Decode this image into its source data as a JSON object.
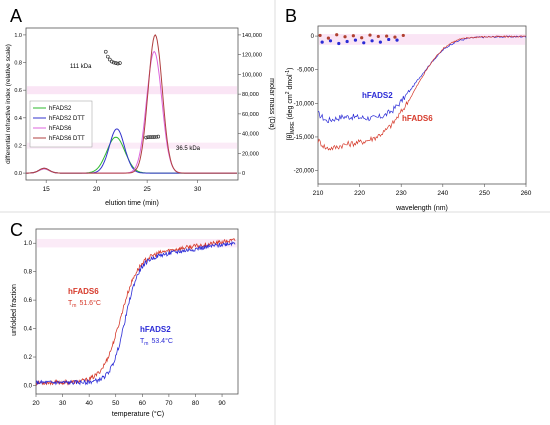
{
  "panels": {
    "A": "A",
    "B": "B",
    "C": "C"
  },
  "chart_data": [
    {
      "id": "A",
      "type": "line",
      "xlabel": "elution time (min)",
      "ylabel": "differential refractive index (relative scale)",
      "y2label": "molar mass (Da)",
      "xlim": [
        13,
        34
      ],
      "ylim": [
        -0.05,
        1.05
      ],
      "y2lim": [
        -7000,
        147000
      ],
      "xticks": [
        15,
        20,
        25,
        30
      ],
      "yticks": [
        0,
        0.2,
        0.4,
        0.6,
        0.8,
        1.0
      ],
      "ytick_labels": [
        "0.0",
        "0.2",
        "0.4",
        "0.6",
        "0.8",
        "1.0"
      ],
      "y2ticks": [
        0,
        20000,
        40000,
        60000,
        80000,
        100000,
        120000,
        140000
      ],
      "y2tick_labels": [
        "0",
        "20,000",
        "40,000",
        "60,000",
        "80,000",
        "100,000",
        "120,000",
        "140,000"
      ],
      "legend_position": "left",
      "series": [
        {
          "name": "hFADS2",
          "color": "#2eb82e",
          "peaks": [
            {
              "t": 14.8,
              "h": 0.03,
              "w": 0.5
            },
            {
              "t": 21.9,
              "h": 0.26,
              "w": 0.9
            }
          ]
        },
        {
          "name": "hFADS2 DTT",
          "color": "#3333cc",
          "peaks": [
            {
              "t": 14.8,
              "h": 0.035,
              "w": 0.5
            },
            {
              "t": 22.0,
              "h": 0.32,
              "w": 0.75
            }
          ]
        },
        {
          "name": "hFADS6",
          "color": "#dd66dd",
          "peaks": [
            {
              "t": 14.8,
              "h": 0.03,
              "w": 0.5
            },
            {
              "t": 25.7,
              "h": 0.88,
              "w": 0.75
            }
          ]
        },
        {
          "name": "hFADS6 DTT",
          "color": "#b04040",
          "peaks": [
            {
              "t": 14.8,
              "h": 0.035,
              "w": 0.5
            },
            {
              "t": 25.8,
              "h": 1.0,
              "w": 0.7
            }
          ]
        }
      ],
      "mass_points_111": {
        "x": [
          20.9,
          21.1,
          21.3,
          21.5,
          21.7,
          21.9,
          22.1,
          22.3
        ],
        "y": [
          123000,
          118000,
          115000,
          113000,
          112000,
          111500,
          111000,
          111500
        ]
      },
      "mass_points_36": {
        "x": [
          24.9,
          25.1,
          25.3,
          25.5,
          25.7,
          25.9,
          26.1
        ],
        "y": [
          36000,
          36400,
          36500,
          36500,
          36600,
          36700,
          37000
        ]
      },
      "annotations": [
        {
          "text": "111 kDa",
          "x": 17.8,
          "y2": 114000
        },
        {
          "text": "36.5 kDa",
          "x": 26.8,
          "y2": 35000
        }
      ]
    },
    {
      "id": "B",
      "type": "scatter",
      "xlabel": "wavelength (nm)",
      "ylabel": "[θ]MRE (deg cm² dmol⁻¹)",
      "ylabel_theta": "[θ]",
      "ylabel_sub": "MRE",
      "ylabel_mid": " (deg cm",
      "ylabel_sup2": "2",
      "ylabel_mid2": " dmol",
      "ylabel_sup1": "-1",
      "ylabel_end": ")",
      "xlim": [
        210,
        260
      ],
      "ylim": [
        -22000,
        1500
      ],
      "xticks": [
        210,
        220,
        230,
        240,
        250,
        260
      ],
      "yticks": [
        0,
        -5000,
        -10000,
        -15000,
        -20000
      ],
      "ytick_labels": [
        "0",
        "-5,000",
        "-10,000",
        "-15,000",
        "-20,000"
      ],
      "series": [
        {
          "name": "hFADS2",
          "label": "hFADS2",
          "color": "#2b2bd6",
          "x": [
            210,
            212,
            214,
            216,
            218,
            220,
            222,
            224,
            226,
            228,
            230,
            232,
            234,
            236,
            238,
            240,
            242,
            244,
            246,
            248,
            250,
            252,
            254,
            256,
            258,
            260
          ],
          "y": [
            -11500,
            -12600,
            -12300,
            -12000,
            -12000,
            -12100,
            -12200,
            -12200,
            -11800,
            -11000,
            -9700,
            -8200,
            -6500,
            -4900,
            -3400,
            -2100,
            -1200,
            -650,
            -350,
            -200,
            -150,
            -120,
            -100,
            -100,
            -80,
            -80
          ]
        },
        {
          "name": "hFADS6",
          "label": "hFADS6",
          "color": "#d63a2b",
          "x": [
            210,
            212,
            214,
            216,
            218,
            220,
            222,
            224,
            226,
            228,
            230,
            232,
            234,
            236,
            238,
            240,
            242,
            244,
            246,
            248,
            250,
            252,
            254,
            256,
            258,
            260
          ],
          "y": [
            -15500,
            -16700,
            -16600,
            -16200,
            -16000,
            -15800,
            -15500,
            -15000,
            -14200,
            -13000,
            -11300,
            -9400,
            -7200,
            -5100,
            -3300,
            -1900,
            -1000,
            -500,
            -250,
            -150,
            -120,
            -100,
            -80,
            -80,
            -60,
            -60
          ]
        }
      ],
      "points_hFADS2_above": {
        "x": [
          211,
          213,
          215,
          217,
          219,
          221,
          223,
          225,
          227,
          229
        ],
        "y": [
          -900,
          -700,
          -1100,
          -800,
          -600,
          -1000,
          -700,
          -900,
          -500,
          -600
        ]
      },
      "points_hFADS6_above": {
        "x": [
          210.5,
          212.5,
          214.5,
          216.5,
          218.5,
          220.5,
          222.5,
          224.5,
          226.5,
          228.5,
          230.5
        ],
        "y": [
          100,
          -300,
          200,
          -100,
          50,
          -250,
          150,
          -50,
          0,
          -150,
          100
        ]
      }
    },
    {
      "id": "C",
      "type": "line",
      "xlabel": "temperature (°C)",
      "ylabel": "unfolded fraction",
      "xlim": [
        20,
        96
      ],
      "ylim": [
        -0.06,
        1.1
      ],
      "xticks": [
        20,
        30,
        40,
        50,
        60,
        70,
        80,
        90
      ],
      "yticks": [
        0,
        0.2,
        0.4,
        0.6,
        0.8,
        1.0
      ],
      "ytick_labels": [
        "0.0",
        "0.2",
        "0.4",
        "0.6",
        "0.8",
        "1.0"
      ],
      "series": [
        {
          "name": "hFADS6",
          "label": "hFADS6",
          "tm_label": "51.6°C",
          "color": "#d63a2b",
          "tm": 51.6,
          "slope": 3.3,
          "base": 0.02,
          "top": 0.9,
          "late_slope": 0.0028
        },
        {
          "name": "hFADS2",
          "label": "hFADS2",
          "tm_label": "53.4°C",
          "color": "#2b2bd6",
          "tm": 53.4,
          "slope": 2.6,
          "base": 0.02,
          "top": 0.88,
          "late_slope": 0.003
        }
      ],
      "tm_prefix": "T",
      "tm_sub": "m"
    }
  ]
}
